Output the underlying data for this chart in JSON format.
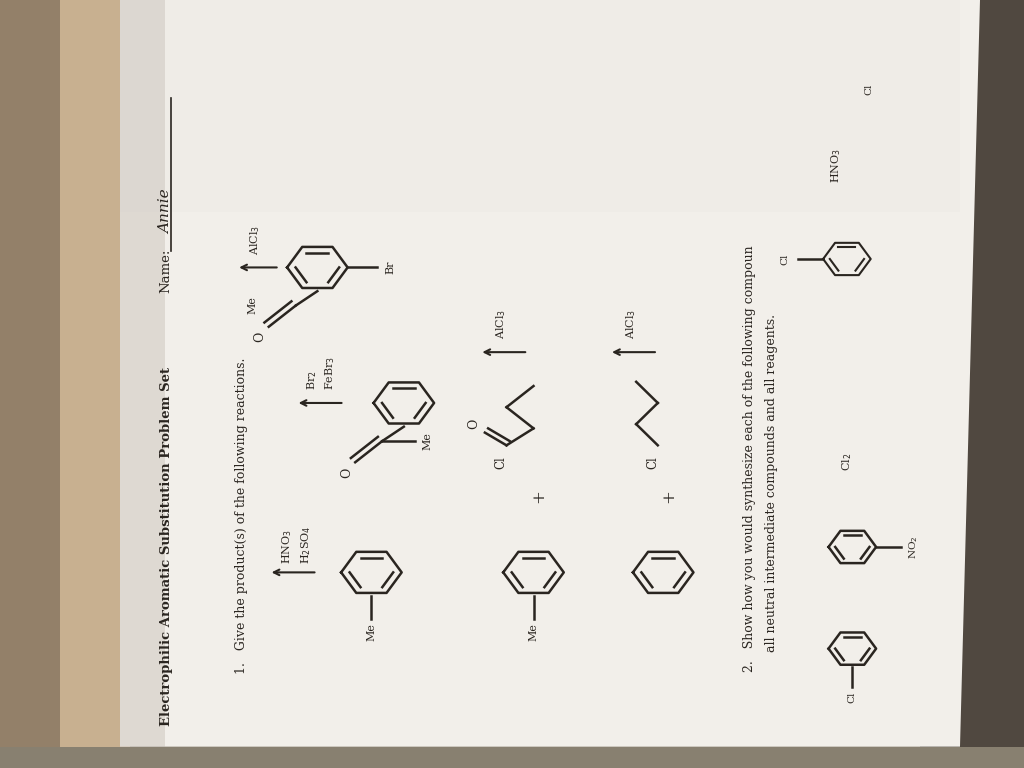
{
  "title": "Electrophilic Aromatic Substitution Problem Set",
  "name_label": "Name:",
  "name_value": "Annie",
  "q1_text": "1.   Give the product(s) of the following reactions.",
  "q2_text": "2.   Show how you would synthesize each of the following compoun",
  "q2_text2": "     all neutral intermediate compounds and all reagents.",
  "bg_left_color": "#c8b89a",
  "bg_right_color": "#b0a898",
  "paper_color": "#f0ede8",
  "paper_color2": "#e8e5e0",
  "text_color": "#2a2520",
  "fig_width": 10.24,
  "fig_height": 7.68,
  "dpi": 100
}
